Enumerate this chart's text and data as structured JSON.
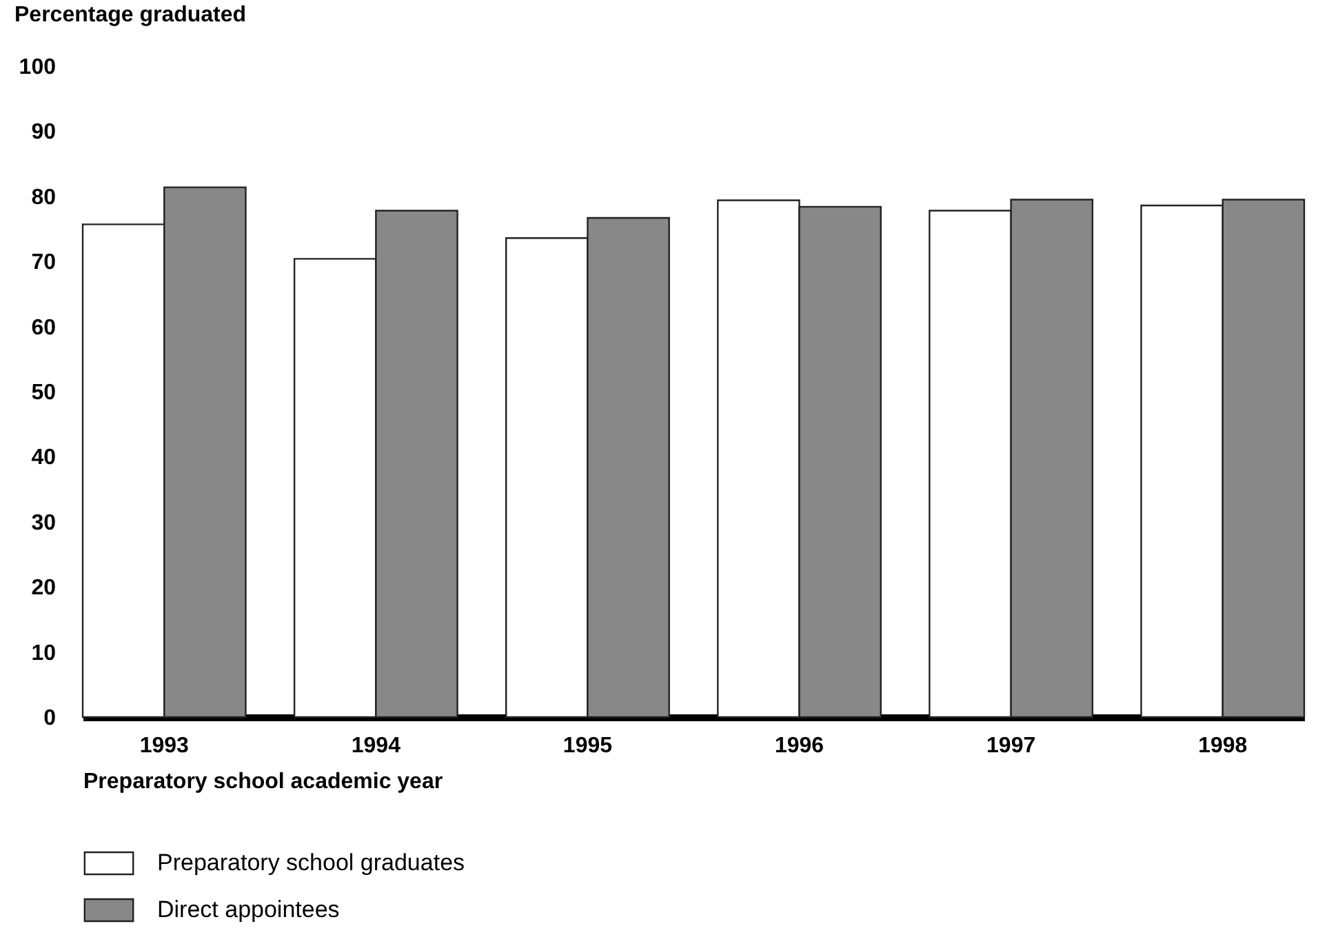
{
  "chart_data": {
    "type": "bar",
    "ylabel": "Percentage graduated",
    "xlabel": "Preparatory school academic year",
    "categories": [
      "1993",
      "1994",
      "1995",
      "1996",
      "1997",
      "1998"
    ],
    "series": [
      {
        "name": "Preparatory school graduates",
        "color": "#ffffff",
        "values": [
          75.7,
          70.4,
          73.6,
          79.4,
          77.8,
          78.6
        ]
      },
      {
        "name": "Direct appointees",
        "color": "#888888",
        "values": [
          81.4,
          77.8,
          76.7,
          78.4,
          79.5,
          79.5
        ]
      }
    ],
    "ylim": [
      0,
      100
    ],
    "yticks": [
      0,
      10,
      20,
      30,
      40,
      50,
      60,
      70,
      80,
      90,
      100
    ],
    "grid": false,
    "legend": "bottom left"
  }
}
